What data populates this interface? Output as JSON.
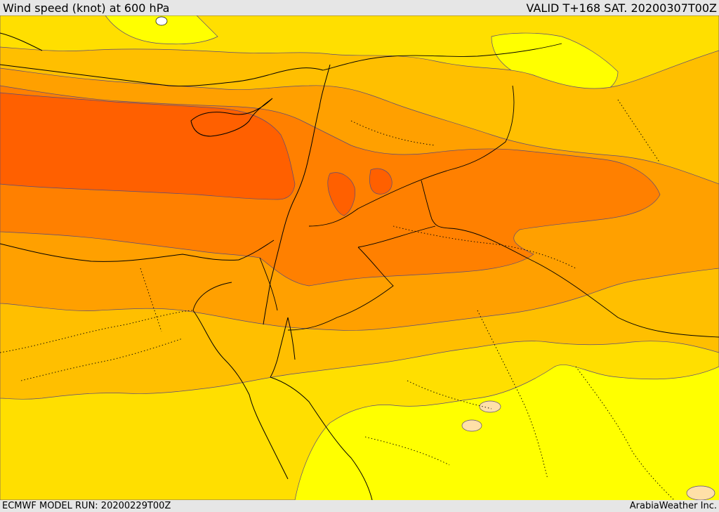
{
  "header": {
    "title": "Wind speed (knot) at 600 hPa",
    "valid": "VALID T+168 SAT. 20200307T00Z"
  },
  "footer": {
    "model_run": "ECMWF MODEL RUN: 20200229T00Z",
    "credit": "ArabiaWeather Inc."
  },
  "colors": {
    "band_1": "#ffff00",
    "band_2": "#ffdf00",
    "band_3": "#ffbf00",
    "band_4": "#ffa000",
    "band_5": "#ff8000",
    "band_6": "#ff6000",
    "calm": "#ffe0a8",
    "contour": "#5a4a7a",
    "coastline": "#000000"
  }
}
